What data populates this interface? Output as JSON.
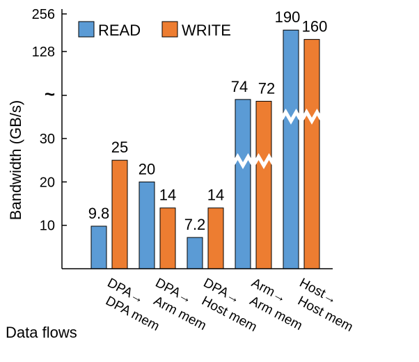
{
  "chart_data": {
    "type": "bar",
    "title": "",
    "xlabel": "Data flows",
    "ylabel": "Bandwidth (GB/s)",
    "categories": [
      "DPA→DPA mem",
      "DPA→Arm mem",
      "DPA→Host mem",
      "Arm→Arm mem",
      "Host→Host mem"
    ],
    "series": [
      {
        "name": "READ",
        "color": "#5B9BD5",
        "values": [
          9.8,
          20,
          7.2,
          74,
          190
        ]
      },
      {
        "name": "WRITE",
        "color": "#ED7D31",
        "values": [
          25,
          14,
          14,
          72,
          160
        ]
      }
    ],
    "y_ticks": [
      "10",
      "20",
      "30",
      "~",
      "128",
      "256"
    ],
    "axis_break": "~",
    "broken_axis": true,
    "legend": {
      "position": "top-left",
      "orientation": "horizontal"
    },
    "grid": false
  }
}
